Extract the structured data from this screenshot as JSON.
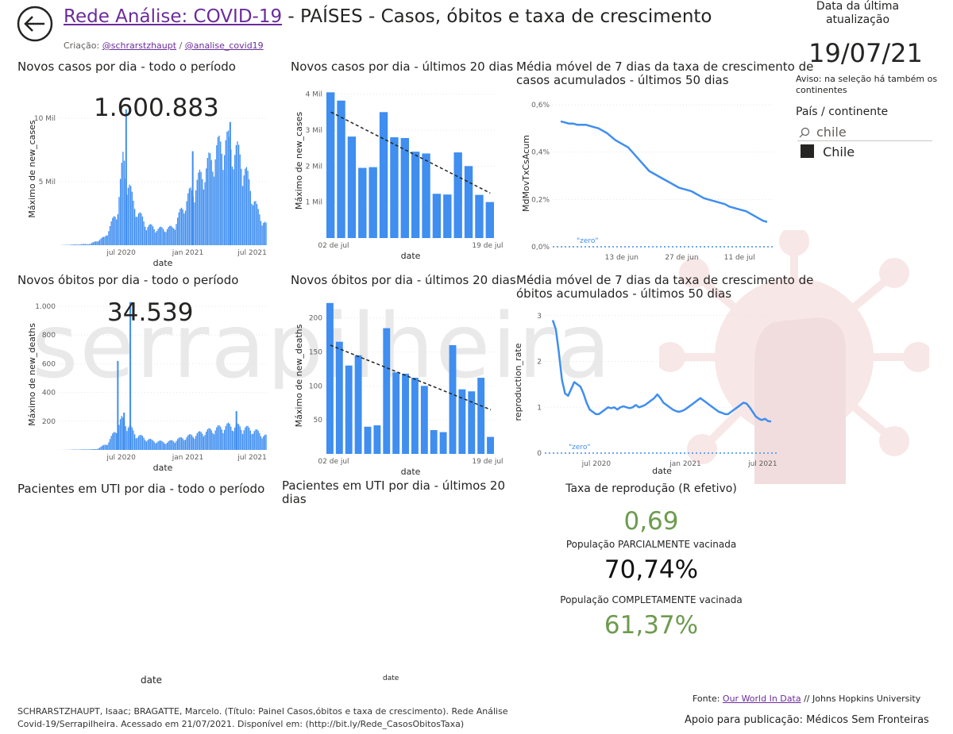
{
  "header": {
    "title_link": "Rede Análise: COVID-19",
    "title_rest": " - PAÍSES - Casos, óbitos e taxa de crescimento",
    "credit_prefix": "Criação: ",
    "credit_link1": "@schrarstzhaupt",
    "credit_sep": " / ",
    "credit_link2": "@analise_covid19"
  },
  "update": {
    "label": "Data da última atualização",
    "date": "19/07/21",
    "notice": "Aviso: na seleção há também os continentes"
  },
  "filter": {
    "label": "País / continente",
    "search_value": "chile",
    "item": "Chile"
  },
  "panels": {
    "cases_all_title": "Novos casos por dia - todo o período",
    "cases_all_big": "1.600.883",
    "cases_20_title": "Novos casos por dia - últimos 20 dias",
    "growth_cases_title1": "Média móvel de 7 dias da taxa de crescimento de",
    "growth_cases_title2": "casos acumulados - últimos 50 dias",
    "deaths_all_title": "Novos óbitos por dia - todo o período",
    "deaths_all_big": "34.539",
    "deaths_20_title": "Novos óbitos por dia - últimos 20 dias",
    "growth_deaths_title1": "Média móvel de 7 dias da taxa de crescimento de",
    "growth_deaths_title2": "óbitos acumulados - últimos 50 dias",
    "icu_all_title": "Pacientes em UTI por dia - todo o período",
    "icu_20_title1": "Pacientes em UTI por dia - últimos 20",
    "icu_20_title2": "dias",
    "icu_all_xlabel": "date",
    "icu_20_xlabel": "date"
  },
  "kpis": {
    "r_label": "Taxa de reprodução (R efetivo)",
    "r_value": "0,69",
    "partial_label": "População PARCIALMENTE vacinada",
    "partial_value": "70,74%",
    "full_label": "População COMPLETAMENTE vacinada",
    "full_value": "61,37%"
  },
  "footer": {
    "citation_line1": "SCHRARSTZHAUPT, Isaac; BRAGATTE, Marcelo. (Título: Painel Casos,óbitos e taxa de crescimento). Rede Análise",
    "citation_line2": "Covid-19/Serrapilheira. Acessado em 21/07/2021. Disponível em: (http://bit.ly/Rede_CasosObitosTaxa)",
    "source_prefix": "Fonte: ",
    "source_link": "Our World In Data",
    "source_rest": " // Johns Hopkins University",
    "support": "Apoio para publicação: Médicos Sem Fronteiras"
  },
  "watermark_text": "serrapilheira",
  "colors": {
    "bar": "#3f8ef0",
    "line": "#3f8ef0",
    "green": "#6d9b4f",
    "link": "#6b2c9a",
    "text": "#252423"
  },
  "chart_data": [
    {
      "id": "cases_all",
      "type": "bar",
      "xlabel": "date",
      "ylabel": "Máximo de new_cases",
      "yticks": [
        "5 Mil",
        "10 Mil"
      ],
      "ytick_values": [
        5000,
        10000
      ],
      "ylim": [
        0,
        12000
      ],
      "xticks": [
        "jul 2020",
        "jan 2021",
        "jul 2021"
      ],
      "xtick_pos": [
        0.3,
        0.62,
        0.93
      ],
      "series_profile": [
        [
          0.0,
          0
        ],
        [
          0.15,
          100
        ],
        [
          0.22,
          600
        ],
        [
          0.28,
          2500
        ],
        [
          0.31,
          6500
        ],
        [
          0.33,
          5000
        ],
        [
          0.36,
          3000
        ],
        [
          0.42,
          1500
        ],
        [
          0.48,
          1200
        ],
        [
          0.55,
          1300
        ],
        [
          0.62,
          3500
        ],
        [
          0.7,
          5500
        ],
        [
          0.76,
          7000
        ],
        [
          0.8,
          7800
        ],
        [
          0.84,
          7200
        ],
        [
          0.88,
          6500
        ],
        [
          0.92,
          4500
        ],
        [
          0.96,
          2500
        ],
        [
          1.0,
          1500
        ]
      ],
      "spikes": [
        [
          0.32,
          10700
        ],
        [
          0.64,
          7400
        ],
        [
          0.82,
          9700
        ]
      ]
    },
    {
      "id": "cases_20",
      "type": "bar",
      "xlabel": "date",
      "ylabel": "Máximo de new_cases",
      "yticks": [
        "1 Mil",
        "2 Mil",
        "3 Mil",
        "4 Mil"
      ],
      "ytick_values": [
        1000,
        2000,
        3000,
        4000
      ],
      "ylim": [
        0,
        4300
      ],
      "xticks": [
        "02 de jul",
        "19 de jul"
      ],
      "values": [
        4050,
        3820,
        2820,
        1950,
        1970,
        3500,
        2800,
        2780,
        2400,
        2350,
        1230,
        1210,
        2380,
        2000,
        1200,
        1000
      ],
      "trend": [
        3500,
        1250
      ]
    },
    {
      "id": "growth_cases",
      "type": "line",
      "xlabel": "",
      "ylabel": "MdMovTxCsAcum",
      "yticks": [
        "0,0%",
        "0,2%",
        "0,4%",
        "0,6%"
      ],
      "ytick_values": [
        0,
        0.2,
        0.4,
        0.6
      ],
      "ylim": [
        0,
        0.62
      ],
      "xticks": [
        "13 de jun",
        "27 de jun",
        "11 de jul"
      ],
      "xtick_pos": [
        0.31,
        0.58,
        0.84
      ],
      "zero_label": "\"zero\"",
      "values": [
        0.53,
        0.525,
        0.52,
        0.52,
        0.515,
        0.515,
        0.515,
        0.51,
        0.505,
        0.5,
        0.49,
        0.48,
        0.465,
        0.45,
        0.44,
        0.43,
        0.42,
        0.4,
        0.38,
        0.36,
        0.34,
        0.32,
        0.31,
        0.3,
        0.29,
        0.28,
        0.27,
        0.26,
        0.25,
        0.245,
        0.24,
        0.235,
        0.225,
        0.215,
        0.205,
        0.2,
        0.195,
        0.19,
        0.185,
        0.18,
        0.17,
        0.165,
        0.16,
        0.155,
        0.15,
        0.14,
        0.13,
        0.12,
        0.11,
        0.105
      ]
    },
    {
      "id": "deaths_all",
      "type": "bar",
      "xlabel": "date",
      "ylabel": "Máximo de new_deaths",
      "yticks": [
        "200",
        "400",
        "600",
        "800",
        "1.000"
      ],
      "ytick_values": [
        200,
        400,
        600,
        800,
        1000
      ],
      "ylim": [
        0,
        1050
      ],
      "xticks": [
        "jul 2020",
        "jan 2021",
        "jul 2021"
      ],
      "xtick_pos": [
        0.3,
        0.62,
        0.93
      ],
      "series_profile": [
        [
          0.0,
          0
        ],
        [
          0.18,
          5
        ],
        [
          0.23,
          40
        ],
        [
          0.27,
          120
        ],
        [
          0.3,
          200
        ],
        [
          0.33,
          170
        ],
        [
          0.37,
          100
        ],
        [
          0.45,
          60
        ],
        [
          0.52,
          50
        ],
        [
          0.6,
          80
        ],
        [
          0.68,
          110
        ],
        [
          0.76,
          140
        ],
        [
          0.82,
          160
        ],
        [
          0.88,
          150
        ],
        [
          0.94,
          130
        ],
        [
          1.0,
          90
        ]
      ],
      "spikes": [
        [
          0.28,
          620
        ],
        [
          0.34,
          1030
        ],
        [
          0.31,
          260
        ],
        [
          0.85,
          270
        ]
      ]
    },
    {
      "id": "deaths_20",
      "type": "bar",
      "xlabel": "date",
      "ylabel": "Máximo de new_deaths",
      "yticks": [
        "50",
        "100",
        "150",
        "200"
      ],
      "ytick_values": [
        50,
        100,
        150,
        200
      ],
      "ylim": [
        0,
        230
      ],
      "xticks": [
        "02 de jul",
        "19 de jul"
      ],
      "values": [
        222,
        165,
        130,
        145,
        40,
        42,
        185,
        120,
        118,
        112,
        100,
        35,
        32,
        160,
        95,
        92,
        112,
        25
      ],
      "trend": [
        160,
        65
      ]
    },
    {
      "id": "growth_deaths",
      "type": "line",
      "xlabel": "date",
      "ylabel": "reproduction_rate",
      "yticks": [
        "0",
        "1",
        "2",
        "3"
      ],
      "ytick_values": [
        0,
        1,
        2,
        3
      ],
      "ylim": [
        0,
        3.1
      ],
      "xticks": [
        "jul 2020",
        "jan 2021",
        "jul 2021"
      ],
      "xtick_pos": [
        0.22,
        0.6,
        0.93
      ],
      "zero_label": "\"zero\"",
      "values": [
        2.9,
        2.7,
        2.2,
        1.6,
        1.3,
        1.25,
        1.4,
        1.55,
        1.5,
        1.45,
        1.3,
        1.1,
        0.95,
        0.9,
        0.85,
        0.85,
        0.9,
        0.95,
        1.0,
        0.98,
        1.0,
        0.95,
        1.0,
        1.02,
        1.0,
        0.98,
        1.0,
        1.05,
        1.0,
        1.02,
        1.05,
        1.1,
        1.15,
        1.2,
        1.28,
        1.2,
        1.1,
        1.05,
        1.0,
        0.95,
        0.92,
        0.9,
        0.92,
        0.95,
        1.0,
        1.05,
        1.1,
        1.15,
        1.2,
        1.15,
        1.1,
        1.05,
        1.0,
        0.95,
        0.9,
        0.88,
        0.85,
        0.85,
        0.9,
        0.95,
        1.0,
        1.05,
        1.1,
        1.08,
        1.0,
        0.9,
        0.8,
        0.75,
        0.72,
        0.75,
        0.7,
        0.69
      ]
    }
  ]
}
